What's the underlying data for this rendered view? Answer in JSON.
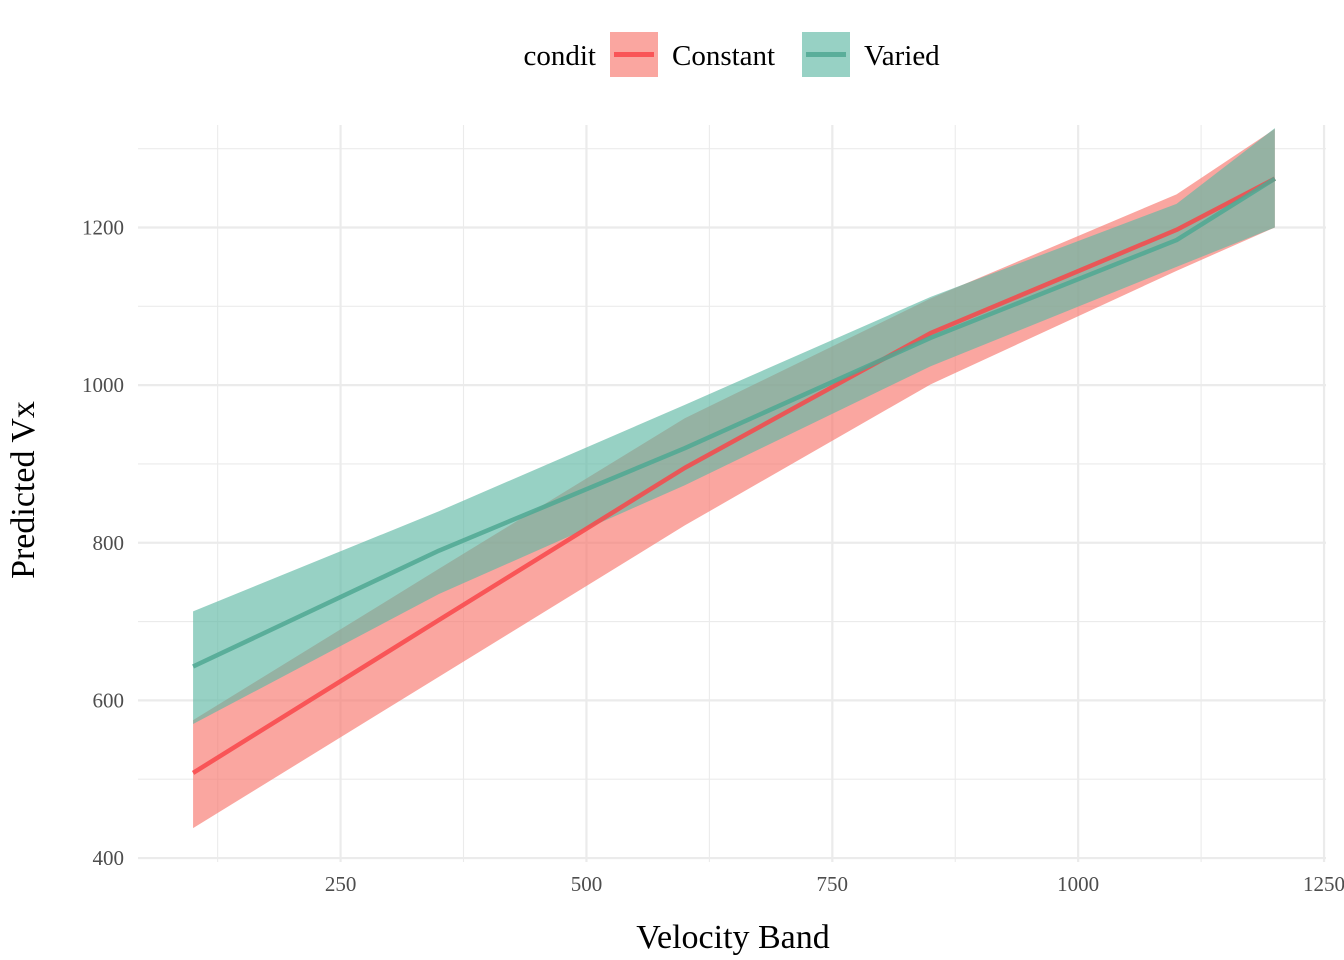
{
  "chart_data": {
    "type": "line",
    "xlabel": "Velocity Band",
    "ylabel": "Predicted Vx",
    "xlim": [
      44,
      1252
    ],
    "ylim": [
      395,
      1330
    ],
    "x_major_ticks": [
      250,
      500,
      750,
      1000,
      1250
    ],
    "x_tick_labels": [
      "250",
      "500",
      "750",
      "1000",
      "1250"
    ],
    "x_minor_ticks": [
      125,
      375,
      625,
      875,
      1125
    ],
    "y_major_ticks": [
      400,
      600,
      800,
      1000,
      1200
    ],
    "y_tick_labels": [
      "400",
      "600",
      "800",
      "1000",
      "1200"
    ],
    "y_minor_ticks": [
      500,
      700,
      900,
      1100,
      1300
    ],
    "grid": true,
    "legend": {
      "title": "condit",
      "position": "top"
    },
    "series": [
      {
        "name": "Constant",
        "color": "#f8766d",
        "line_color": "#f8464a",
        "x": [
          100,
          350,
          600,
          850,
          1100,
          1200
        ],
        "y": [
          508,
          702,
          895,
          1066,
          1197,
          1262
        ],
        "lower": [
          438,
          630,
          822,
          1001,
          1145,
          1200
        ],
        "upper": [
          575,
          767,
          958,
          1110,
          1242,
          1325
        ]
      },
      {
        "name": "Varied",
        "color": "#5fb9a5",
        "line_color": "#4fa893",
        "x": [
          100,
          350,
          600,
          850,
          1100,
          1200
        ],
        "y": [
          643,
          790,
          920,
          1060,
          1184,
          1262
        ],
        "lower": [
          570,
          735,
          873,
          1024,
          1150,
          1200
        ],
        "upper": [
          713,
          840,
          975,
          1112,
          1230,
          1326
        ]
      }
    ]
  }
}
